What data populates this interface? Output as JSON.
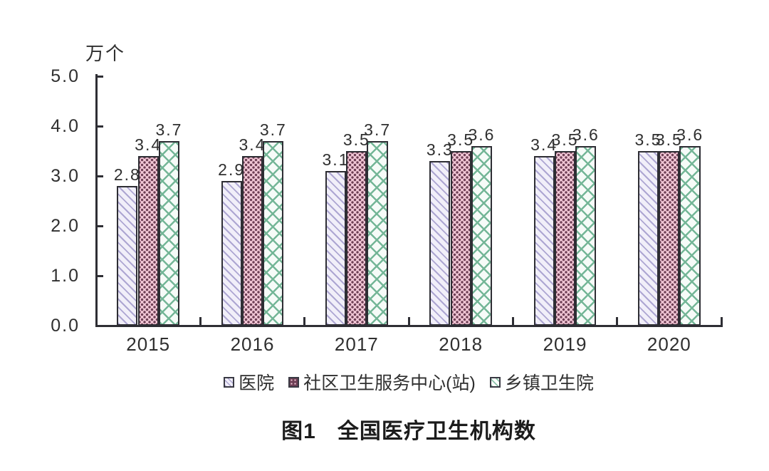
{
  "chart_data": {
    "type": "bar",
    "title": "图1  全国医疗卫生机构数",
    "title_prefix": "图1",
    "title_main": "全国医疗卫生机构数",
    "unit_label": "万个",
    "categories": [
      "2015",
      "2016",
      "2017",
      "2018",
      "2019",
      "2020"
    ],
    "series": [
      {
        "key": "hospitals",
        "name": "医院",
        "values": [
          2.8,
          2.9,
          3.1,
          3.3,
          3.4,
          3.5
        ],
        "pattern": "lavender-diagonal-stripes",
        "stripe_color": "#ada6d2",
        "bg_color": "#f1eff9"
      },
      {
        "key": "community-health-centers",
        "name": "社区卫生服务中心(站)",
        "values": [
          3.4,
          3.4,
          3.5,
          3.5,
          3.5,
          3.5
        ],
        "pattern": "maroon-dot-grid-on-pink",
        "dot_color": "#6e3f55",
        "bg_color": "#f2c7d6"
      },
      {
        "key": "township-health-centers",
        "name": "乡镇卫生院",
        "values": [
          3.7,
          3.7,
          3.7,
          3.6,
          3.6,
          3.6
        ],
        "pattern": "green-diagonal-brick-hatch",
        "line_color": "#74b697",
        "bg_color": "#f6fbf8"
      }
    ],
    "ylim": [
      0,
      5
    ],
    "ytick_step": 1.0,
    "ytick_labels": [
      "0.0",
      "1.0",
      "2.0",
      "3.0",
      "4.0",
      "5.0"
    ],
    "grid": false,
    "legend_position": "bottom",
    "value_labels": true,
    "value_label_decimals": 1,
    "axis_color": "#2e2e34",
    "text_color": "#2f2f2f"
  }
}
